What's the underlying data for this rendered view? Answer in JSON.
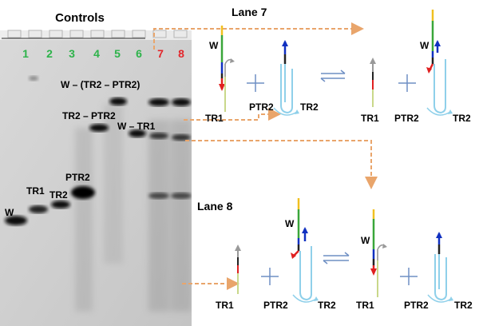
{
  "gel": {
    "title": "Controls",
    "lanes": [
      {
        "number": "1",
        "color": "#2db34a"
      },
      {
        "number": "2",
        "color": "#2db34a"
      },
      {
        "number": "3",
        "color": "#2db34a"
      },
      {
        "number": "4",
        "color": "#2db34a"
      },
      {
        "number": "5",
        "color": "#2db34a"
      },
      {
        "number": "6",
        "color": "#2db34a"
      },
      {
        "number": "7",
        "color": "#e3262b"
      },
      {
        "number": "8",
        "color": "#e3262b"
      }
    ],
    "band_labels": {
      "w": "W",
      "tr1": "TR1",
      "tr2": "TR2",
      "ptr2": "PTR2",
      "tr2_ptr2": "TR2 – PTR2",
      "w_tr2_ptr2": "W – (TR2 – PTR2)",
      "w_tr1": "W – TR1"
    }
  },
  "lane7": {
    "title": "Lane 7",
    "labels": {
      "w1": "W",
      "tr1_a": "TR1",
      "ptr2_a": "PTR2",
      "tr2_a": "TR2",
      "tr1_b": "TR1",
      "w2": "W",
      "ptr2_b": "PTR2",
      "tr2_b": "TR2"
    }
  },
  "lane8": {
    "title": "Lane 8",
    "labels": {
      "tr1_a": "TR1",
      "w1": "W",
      "ptr2_a": "PTR2",
      "tr2_a": "TR2",
      "w2": "W",
      "tr1_b": "TR1",
      "ptr2_b": "PTR2",
      "tr2_b": "TR2"
    }
  },
  "colors": {
    "arrow_dashed": "#e9a56b",
    "plus": "#6f8fc4",
    "hairpin": "#8fd0ea",
    "strand_green": "#3aa63a",
    "strand_red": "#e02020",
    "strand_blue": "#1030c0",
    "strand_yellow": "#f0c020",
    "strand_gray": "#999999"
  }
}
